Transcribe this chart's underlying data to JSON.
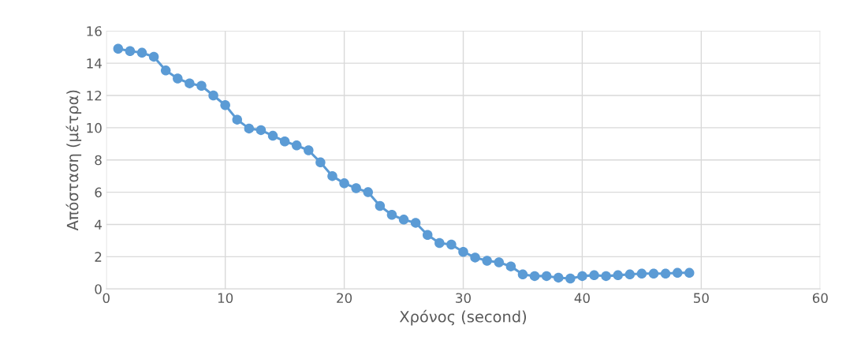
{
  "chart_data": {
    "type": "line",
    "xlabel": "Χρόνος (second)",
    "ylabel": "Απόσταση (μέτρα)",
    "x": [
      1,
      2,
      3,
      4,
      5,
      6,
      7,
      8,
      9,
      10,
      11,
      12,
      13,
      14,
      15,
      16,
      17,
      18,
      19,
      20,
      21,
      22,
      23,
      24,
      25,
      26,
      27,
      28,
      29,
      30,
      31,
      32,
      33,
      34,
      35,
      36,
      37,
      38,
      39,
      40,
      41,
      42,
      43,
      44,
      45,
      46,
      47,
      48,
      49
    ],
    "series": [
      {
        "color": "#5b9bd5",
        "values": [
          14.9,
          14.75,
          14.65,
          14.4,
          13.55,
          13.05,
          12.75,
          12.6,
          12.0,
          11.4,
          10.5,
          9.95,
          9.85,
          9.5,
          9.15,
          8.9,
          8.6,
          7.85,
          7.0,
          6.55,
          6.25,
          6.0,
          5.15,
          4.6,
          4.3,
          4.1,
          3.35,
          2.85,
          2.75,
          2.3,
          1.95,
          1.75,
          1.65,
          1.4,
          0.9,
          0.8,
          0.8,
          0.7,
          0.65,
          0.8,
          0.85,
          0.8,
          0.85,
          0.9,
          0.95,
          0.95,
          0.95,
          1.0,
          1.0
        ]
      }
    ],
    "xlim": [
      0,
      60
    ],
    "xticks": [
      0,
      10,
      20,
      30,
      40,
      50,
      60
    ],
    "ylim": [
      0,
      16
    ],
    "yticks": [
      0,
      2,
      4,
      6,
      8,
      10,
      12,
      14,
      16
    ],
    "grid": true,
    "marker": "circle",
    "line_style": "solid"
  }
}
